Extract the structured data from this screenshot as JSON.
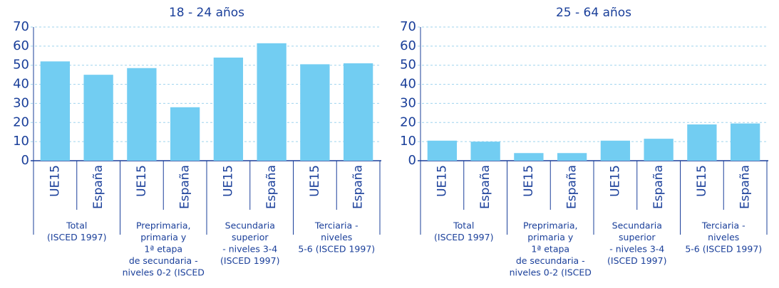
{
  "chart_data": [
    {
      "type": "bar",
      "title": "18 - 24 años",
      "categories": [
        "UE15",
        "España",
        "UE15",
        "España",
        "UE15",
        "España",
        "UE15",
        "España"
      ],
      "groups": [
        [
          "Total",
          "(ISCED 1997)"
        ],
        [
          "Preprimaria,",
          "primaria y",
          "1ª etapa",
          "de secundaria -",
          "niveles 0-2 (ISCED"
        ],
        [
          "Secundaria",
          "superior",
          "- niveles 3-4",
          "(ISCED 1997)"
        ],
        [
          "Terciaria -",
          "niveles",
          "5-6 (ISCED 1997)"
        ]
      ],
      "values": [
        52,
        45,
        48.5,
        28,
        54,
        61.5,
        50.5,
        51
      ],
      "color": "#72cdf2",
      "ylim": [
        0,
        70
      ],
      "yticks": [
        0,
        10,
        20,
        30,
        40,
        50,
        60,
        70
      ],
      "grid": true
    },
    {
      "type": "bar",
      "title": "25 - 64 años",
      "categories": [
        "UE15",
        "España",
        "UE15",
        "España",
        "UE15",
        "España",
        "UE15",
        "España"
      ],
      "groups": [
        [
          "Total",
          "(ISCED 1997)"
        ],
        [
          "Preprimaria,",
          "primaria y",
          "1ª etapa",
          "de secundaria -",
          "niveles 0-2 (ISCED"
        ],
        [
          "Secundaria",
          "superior",
          "- niveles 3-4",
          "(ISCED 1997)"
        ],
        [
          "Terciaria -",
          "niveles",
          "5-6 (ISCED 1997)"
        ]
      ],
      "values": [
        10.5,
        10,
        4,
        4,
        10.5,
        11.5,
        19,
        19.5
      ],
      "color": "#72cdf2",
      "ylim": [
        0,
        70
      ],
      "yticks": [
        0,
        10,
        20,
        30,
        40,
        50,
        60,
        70
      ],
      "grid": true
    }
  ]
}
